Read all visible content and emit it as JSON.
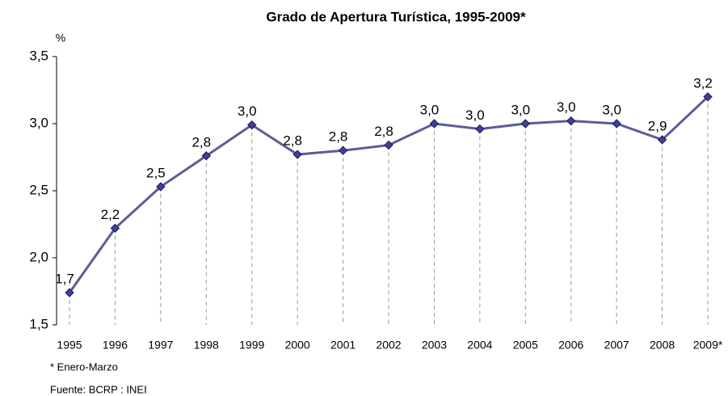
{
  "chart_data": {
    "type": "line",
    "title": "Grado de Apertura Turística, 1995-2009*",
    "y_label": "%",
    "notes": [
      "* Enero-Marzo",
      "Fuente: BCRP : INEI"
    ],
    "categories": [
      "1995",
      "1996",
      "1997",
      "1998",
      "1999",
      "2000",
      "2001",
      "2002",
      "2003",
      "2004",
      "2005",
      "2006",
      "2007",
      "2008",
      "2009*"
    ],
    "values": [
      1.74,
      2.22,
      2.53,
      2.76,
      2.99,
      2.77,
      2.8,
      2.84,
      3.0,
      2.96,
      3.0,
      3.02,
      3.0,
      2.88,
      3.2
    ],
    "value_labels": [
      "1,7",
      "2,2",
      "2,5",
      "2,8",
      "3,0",
      "2,8",
      "2,8",
      "2,8",
      "3,0",
      "3,0",
      "3,0",
      "3,0",
      "3,0",
      "2,9",
      "3,2"
    ],
    "color": "#5c5c99",
    "marker_color": "#3f3f9f",
    "ylim": [
      1.5,
      3.5
    ],
    "yticks": [
      {
        "value": 1.5,
        "label": "1,5"
      },
      {
        "value": 2.0,
        "label": "2,0"
      },
      {
        "value": 2.5,
        "label": "2,5"
      },
      {
        "value": 3.0,
        "label": "3,0"
      },
      {
        "value": 3.5,
        "label": "3,5"
      }
    ],
    "grid": false
  }
}
